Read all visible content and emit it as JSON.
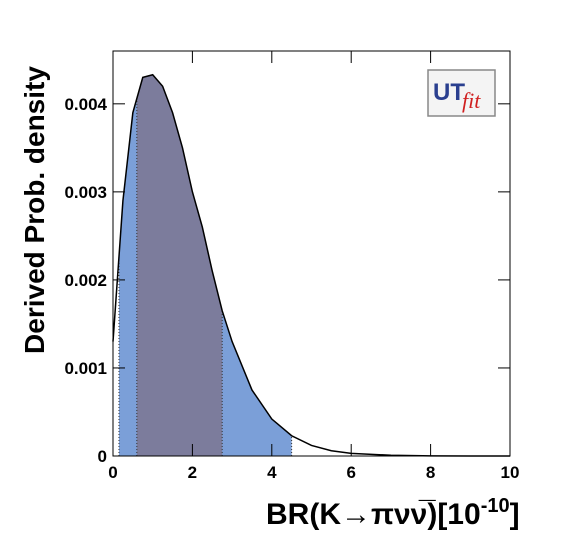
{
  "chart_data": {
    "type": "density",
    "ylabel": "Derived Prob. density",
    "xlabel": {
      "text": "BR(K→πνν̅)[10",
      "sup": "-10",
      "end": "]"
    },
    "logo": {
      "main": "UT",
      "sub": "fit"
    },
    "x": [
      0,
      0.25,
      0.5,
      0.75,
      1,
      1.25,
      1.5,
      1.75,
      2,
      2.25,
      2.5,
      2.75,
      3,
      3.5,
      4,
      4.5,
      5,
      5.5,
      6,
      7,
      8,
      9,
      10
    ],
    "values": [
      0.0013,
      0.0029,
      0.0039,
      0.0043,
      0.00433,
      0.0042,
      0.0039,
      0.0035,
      0.003,
      0.0026,
      0.0021,
      0.00165,
      0.0013,
      0.00075,
      0.00042,
      0.00023,
      0.00012,
      6e-05,
      3e-05,
      8e-06,
      2e-06,
      0,
      0
    ],
    "color": "#000000",
    "intervals": [
      {
        "range": [
          0.15,
          4.5
        ],
        "color": "#7b9fd8"
      },
      {
        "range": [
          0.6,
          2.75
        ],
        "color": "#7c7c9c"
      }
    ],
    "xlim": [
      0,
      10
    ],
    "xticks": [
      0,
      2,
      4,
      6,
      8,
      10
    ],
    "ylim": [
      0,
      0.0046
    ],
    "yticks": [
      0,
      0.001,
      0.002,
      0.003,
      0.004
    ]
  }
}
